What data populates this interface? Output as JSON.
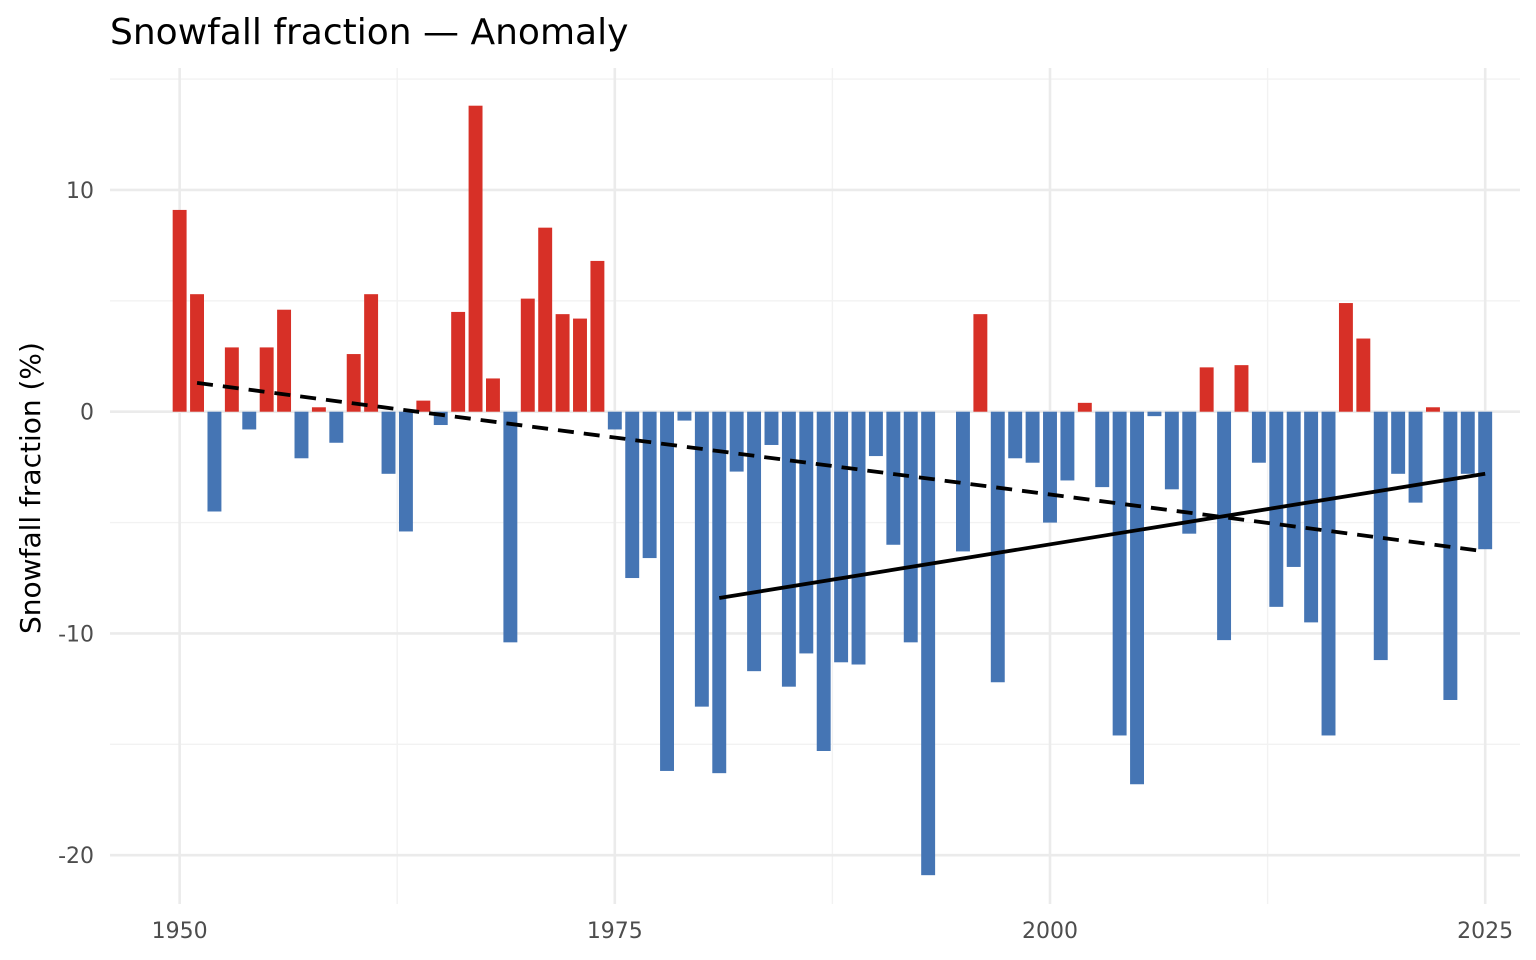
{
  "chart_data": {
    "type": "bar",
    "title": "Snowfall fraction — Anomaly",
    "xlabel": "",
    "ylabel": "Snowfall fraction (%)",
    "xlim": [
      1946,
      2027
    ],
    "ylim": [
      -22.2,
      15.5
    ],
    "x_ticks": [
      1950,
      1975,
      2000,
      2025
    ],
    "y_ticks": [
      10,
      0,
      -10,
      -20
    ],
    "y_tick_labels": [
      "10",
      "0",
      "-10",
      "-20"
    ],
    "grid": true,
    "legend": "none",
    "colors": {
      "positive": "#d73027",
      "negative": "#4575b4",
      "trend": "#000000"
    },
    "x": [
      1950,
      1951,
      1952,
      1953,
      1954,
      1955,
      1956,
      1957,
      1958,
      1959,
      1960,
      1961,
      1962,
      1963,
      1964,
      1965,
      1966,
      1967,
      1968,
      1969,
      1970,
      1971,
      1972,
      1973,
      1974,
      1975,
      1976,
      1977,
      1978,
      1979,
      1980,
      1981,
      1982,
      1983,
      1984,
      1985,
      1986,
      1987,
      1988,
      1989,
      1990,
      1991,
      1992,
      1993,
      1994,
      1995,
      1996,
      1997,
      1998,
      1999,
      2000,
      2001,
      2002,
      2003,
      2004,
      2005,
      2006,
      2007,
      2008,
      2009,
      2010,
      2011,
      2012,
      2013,
      2014,
      2015,
      2016,
      2017,
      2018,
      2019,
      2020,
      2021,
      2022,
      2023,
      2024,
      2025
    ],
    "values": [
      9.1,
      5.3,
      -4.5,
      2.9,
      -0.8,
      2.9,
      4.6,
      -2.1,
      0.2,
      -1.4,
      2.6,
      5.3,
      -2.8,
      -5.4,
      0.5,
      -0.6,
      4.5,
      13.8,
      1.5,
      -10.4,
      5.1,
      8.3,
      4.4,
      4.2,
      6.8,
      -0.8,
      -7.5,
      -6.6,
      -16.2,
      -0.4,
      -13.3,
      -16.3,
      -2.7,
      -11.7,
      -1.5,
      -12.4,
      -10.9,
      -15.3,
      -11.3,
      -11.4,
      -2.0,
      -6.0,
      -10.4,
      -20.9,
      0.0,
      -6.3,
      4.4,
      -12.2,
      -2.1,
      -2.3,
      -5.0,
      -3.1,
      0.4,
      -3.4,
      -14.6,
      -16.8,
      -0.2,
      -3.5,
      -5.5,
      2.0,
      -10.3,
      2.1,
      -2.3,
      -8.8,
      -7.0,
      -9.5,
      -14.6,
      4.9,
      3.3,
      -11.2,
      -2.8,
      -4.1,
      0.2,
      -13.0,
      -2.8,
      -6.2
    ],
    "trend_lines": [
      {
        "style": "dashed",
        "x": [
          1951,
          2025
        ],
        "y": [
          1.3,
          -6.3
        ]
      },
      {
        "style": "solid",
        "x": [
          1981,
          2025
        ],
        "y": [
          -8.4,
          -2.8
        ]
      }
    ]
  }
}
